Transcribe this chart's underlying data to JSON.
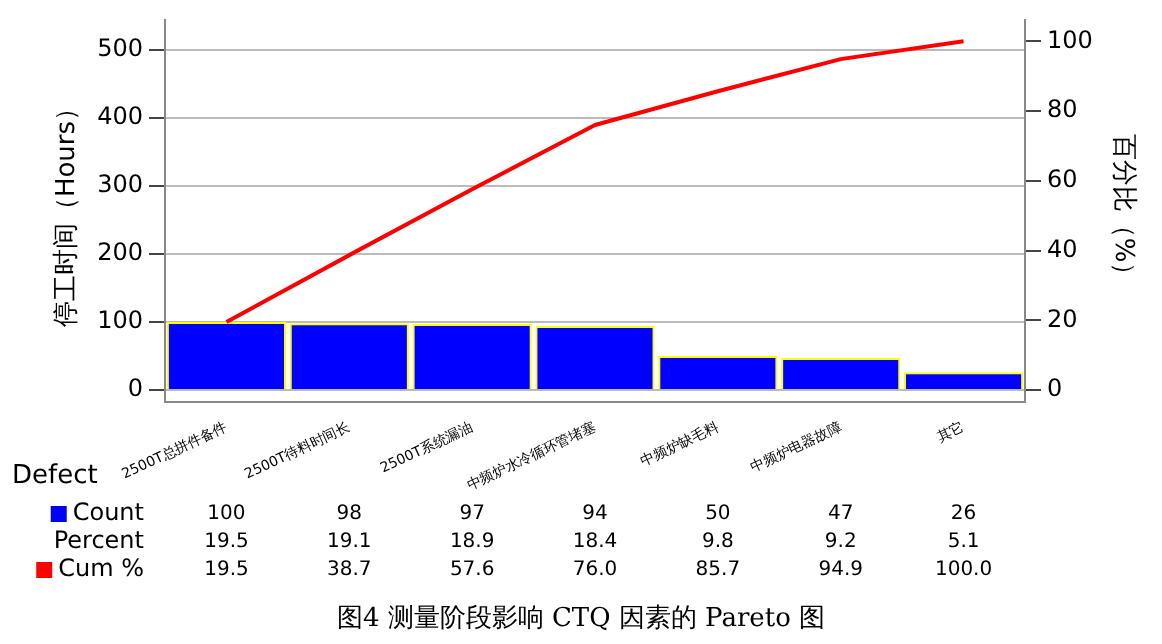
{
  "chart_data": {
    "type": "bar",
    "title": "图4 测量阶段影响 CTQ 因素的 Pareto 图",
    "xlabel": "Defect",
    "ylabel": "停工时间（Hours）",
    "y2label": "百分比（%）",
    "categories": [
      "2500T总拼件备件",
      "2500T待料时间长",
      "2500T系统漏油",
      "中频炉水冷循环管堵塞",
      "中频炉缺毛料",
      "中频炉电器故障",
      "其它"
    ],
    "series": [
      {
        "name": "Count",
        "color": "#0000ff",
        "values": [
          100,
          98,
          97,
          94,
          50,
          47,
          26
        ],
        "value_labels": [
          "100",
          "98",
          "97",
          "94",
          "50",
          "47",
          "26"
        ]
      },
      {
        "name": "Cum %",
        "type": "line",
        "axis": "y2",
        "color": "#ff0000",
        "values": [
          19.5,
          38.7,
          57.6,
          76.0,
          85.7,
          94.9,
          100.0
        ],
        "value_labels": [
          "19.5",
          "38.7",
          "57.6",
          "76.0",
          "85.7",
          "94.9",
          "100.0"
        ]
      }
    ],
    "annotations": [
      "Percent",
      "19.5",
      "19.1",
      "18.9",
      "18.4",
      "9.8",
      "9.2",
      "5.1"
    ],
    "ylim": [
      -17,
      543
    ],
    "yticks": [
      0,
      100,
      200,
      300,
      400,
      500
    ],
    "y2lim": [
      -3.3,
      106
    ],
    "y2ticks": [
      0,
      20,
      40,
      60,
      80,
      100
    ],
    "grid": "y",
    "legend": "bottom left",
    "marker": "none",
    "line_style": "solid"
  }
}
